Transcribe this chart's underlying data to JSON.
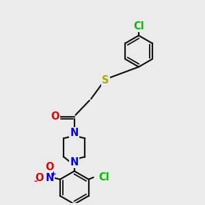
{
  "bg_color": "#ebebeb",
  "bond_color": "#111111",
  "bond_width": 1.6,
  "atom_colors": {
    "N": "#0000ee",
    "O": "#dd0000",
    "S": "#aaaa00",
    "Cl": "#00bb00",
    "C": "#111111"
  },
  "font_size": 10.5
}
